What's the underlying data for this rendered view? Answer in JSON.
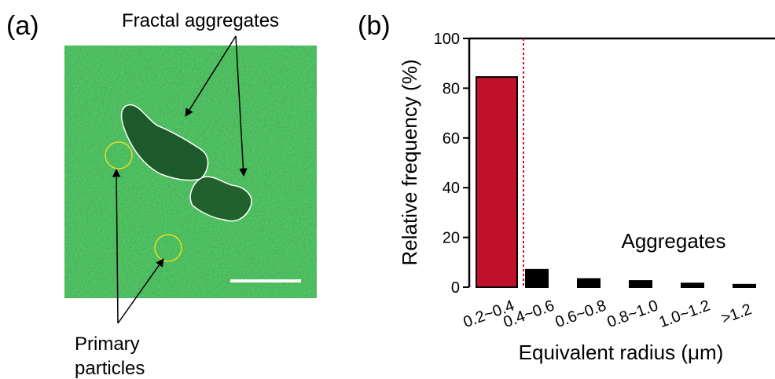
{
  "panel_a": {
    "label": "(a)",
    "annotation_top": "Fractal aggregates",
    "annotation_bottom": [
      "Primary",
      "particles"
    ]
  },
  "chart_data": {
    "type": "bar",
    "panel_label": "(b)",
    "annotation": "Aggregates",
    "xlabel": "Equivalent radius (μm)",
    "ylabel": "Relative frequency (%)",
    "categories": [
      "0.2~0.4",
      "0.4~0.6",
      "0.6~0.8",
      "0.8~1.0",
      "1.0~1.2",
      ">1.2"
    ],
    "values": [
      84.5,
      7,
      3.3,
      2.5,
      1.5,
      1
    ],
    "colors": [
      "#c0102a",
      "#000000",
      "#000000",
      "#000000",
      "#000000",
      "#000000"
    ],
    "ylim": [
      0,
      100
    ],
    "yticks": [
      0,
      20,
      40,
      60,
      80,
      100
    ],
    "grid": false
  }
}
